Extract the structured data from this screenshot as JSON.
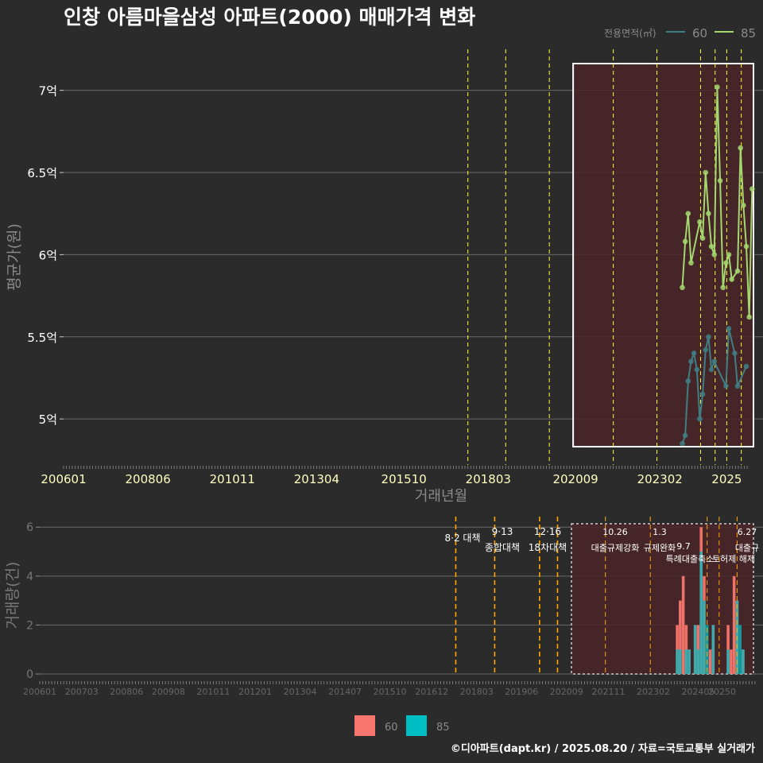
{
  "title": "인창 아름마을삼성 아파트(2000) 매매가격 변화",
  "footer": "©디아파트(dapt.kr) / 2025.08.20 / 자료=국토교통부 실거래가",
  "colors": {
    "background": "#2b2b2b",
    "series60_line": "#3f7f84",
    "series85_line": "#a4d86e",
    "bar60": "#f8766d",
    "bar85": "#00bfc4",
    "highlight_fill": "#4a2428",
    "policy_line": "#ffff33",
    "policy_line_bottom": "#ffa500"
  },
  "chart_data": [
    {
      "type": "line",
      "title": "인창 아름마을삼성 아파트(2000) 매매가격 변화",
      "xlabel": "거래년월",
      "ylabel": "평균가(원)",
      "x_range": [
        "200601",
        "202508"
      ],
      "ylim": [
        4.72,
        7.25
      ],
      "y_ticks": [
        5,
        5.5,
        6,
        6.5,
        7
      ],
      "y_tick_labels": [
        "5억",
        "5.5억",
        "6억",
        "6.5억",
        "7억"
      ],
      "x_tick_labels": [
        "200601",
        "200806",
        "201011",
        "201304",
        "201510",
        "201803",
        "202009",
        "202302",
        "2025"
      ],
      "highlight_range": [
        "202006",
        "202507"
      ],
      "policy_dates": [
        "201708",
        "201809",
        "201912",
        "202110",
        "202301",
        "202404",
        "202409",
        "202501",
        "202506"
      ],
      "legend": {
        "title": "전용면적(㎡)",
        "entries": [
          "60",
          "85"
        ],
        "position": "top-right"
      },
      "series": [
        {
          "name": "60",
          "points": [
            [
              "202310",
              4.85
            ],
            [
              "202311",
              4.9
            ],
            [
              "202312",
              5.23
            ],
            [
              "202401",
              5.35
            ],
            [
              "202402",
              5.4
            ],
            [
              "202403",
              5.3
            ],
            [
              "202404",
              5.0
            ],
            [
              "202405",
              5.15
            ],
            [
              "202406",
              5.42
            ],
            [
              "202407",
              5.5
            ],
            [
              "202408",
              5.3
            ],
            [
              "202409",
              5.35
            ],
            [
              "202501",
              5.2
            ],
            [
              "202502",
              5.55
            ],
            [
              "202504",
              5.4
            ],
            [
              "202505",
              5.2
            ],
            [
              "202508",
              5.32
            ]
          ]
        },
        {
          "name": "85",
          "points": [
            [
              "202310",
              5.8
            ],
            [
              "202311",
              6.08
            ],
            [
              "202312",
              6.25
            ],
            [
              "202401",
              5.95
            ],
            [
              "202404",
              6.2
            ],
            [
              "202405",
              6.1
            ],
            [
              "202406",
              6.5
            ],
            [
              "202407",
              6.25
            ],
            [
              "202408",
              6.05
            ],
            [
              "202409",
              6.0
            ],
            [
              "202410",
              7.02
            ],
            [
              "202411",
              6.45
            ],
            [
              "202412",
              5.8
            ],
            [
              "202501",
              5.95
            ],
            [
              "202502",
              6.0
            ],
            [
              "202503",
              5.85
            ],
            [
              "202505",
              5.9
            ],
            [
              "202506",
              6.65
            ],
            [
              "202507",
              6.3
            ],
            [
              "202508",
              6.05
            ],
            [
              "202509",
              5.62
            ],
            [
              "202510",
              6.4
            ]
          ]
        }
      ]
    },
    {
      "type": "bar",
      "ylabel": "거래량(건)",
      "ylim": [
        0,
        6.3
      ],
      "y_ticks": [
        0,
        2,
        4,
        6
      ],
      "x_tick_labels": [
        "200601",
        "200703",
        "200806",
        "200908",
        "201011",
        "201201",
        "201304",
        "201407",
        "201510",
        "201612",
        "201803",
        "201906",
        "202009",
        "202111",
        "202302",
        "202405",
        "20250"
      ],
      "highlight_range": [
        "202010",
        "202512"
      ],
      "policy_dates": [
        "201708",
        "201809",
        "201912",
        "202006",
        "202110",
        "202301",
        "202408",
        "202412",
        "202506"
      ],
      "annotations": [
        {
          "date": "201708",
          "line1": "8·2 대책",
          "line2": ""
        },
        {
          "date": "201809",
          "line1": "9·13",
          "line2": "종합대책"
        },
        {
          "date": "201912",
          "line1": "12·16",
          "line2": "18차대책"
        },
        {
          "date": "202110",
          "line1": "10.26",
          "line2": "대출규제강화"
        },
        {
          "date": "202301",
          "line1": "1.3",
          "line2": "규제완화"
        },
        {
          "date": "202408",
          "line1": "",
          "line2": "9.7"
        },
        {
          "date": "202408",
          "line1": "",
          "line2": "특례대출축소"
        },
        {
          "date": "202412",
          "line1": "",
          "line2": "토허제 해제"
        },
        {
          "date": "202506",
          "line1": "6.27",
          "line2": "대출규"
        }
      ],
      "legend": {
        "entries": [
          "60",
          "85"
        ],
        "position": "bottom"
      },
      "series": [
        {
          "name": "60",
          "values": [
            [
              "202310",
              2
            ],
            [
              "202311",
              3
            ],
            [
              "202312",
              4
            ],
            [
              "202401",
              2
            ],
            [
              "202402",
              1
            ],
            [
              "202404",
              2
            ],
            [
              "202405",
              2
            ],
            [
              "202406",
              6
            ],
            [
              "202407",
              4
            ],
            [
              "202409",
              1
            ],
            [
              "202410",
              2
            ],
            [
              "202503",
              2
            ],
            [
              "202504",
              1
            ],
            [
              "202505",
              4
            ],
            [
              "202506",
              3
            ],
            [
              "202508",
              1
            ]
          ]
        },
        {
          "name": "85",
          "values": [
            [
              "202310",
              1
            ],
            [
              "202311",
              1
            ],
            [
              "202401",
              1
            ],
            [
              "202402",
              1
            ],
            [
              "202404",
              2
            ],
            [
              "202405",
              1
            ],
            [
              "202406",
              5
            ],
            [
              "202407",
              3
            ],
            [
              "202408",
              2
            ],
            [
              "202410",
              2
            ],
            [
              "202503",
              1
            ],
            [
              "202506",
              3
            ],
            [
              "202507",
              2
            ],
            [
              "202508",
              1
            ]
          ]
        }
      ]
    }
  ]
}
